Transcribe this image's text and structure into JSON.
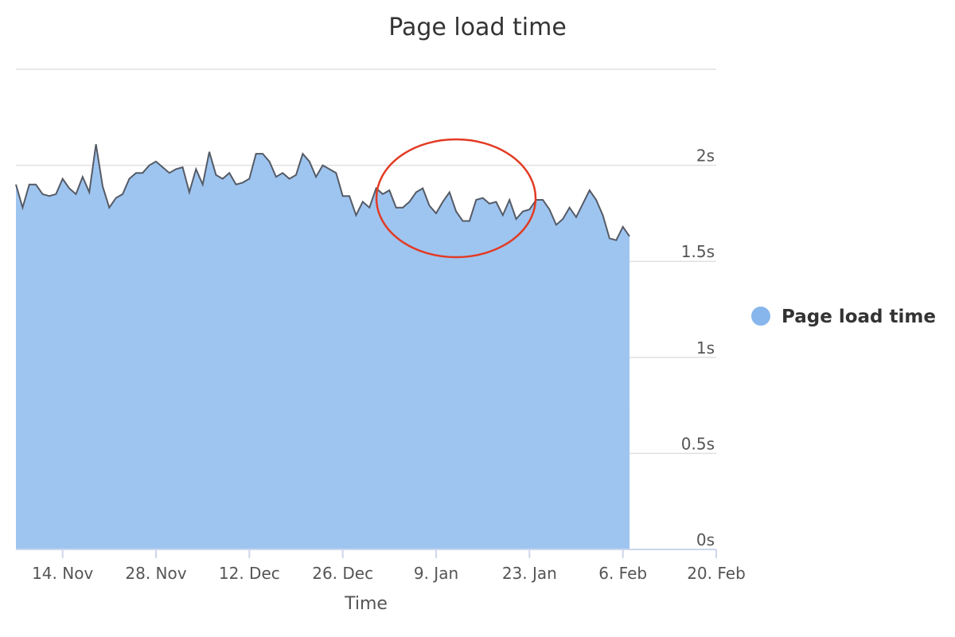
{
  "chart_data": {
    "type": "area",
    "title": "Page load time",
    "xlabel": "Time",
    "x": [
      "11-07",
      "11-08",
      "11-09",
      "11-10",
      "11-11",
      "11-12",
      "11-13",
      "11-14",
      "11-15",
      "11-16",
      "11-17",
      "11-18",
      "11-19",
      "11-20",
      "11-21",
      "11-22",
      "11-23",
      "11-24",
      "11-25",
      "11-26",
      "11-27",
      "11-28",
      "11-29",
      "11-30",
      "12-01",
      "12-02",
      "12-03",
      "12-04",
      "12-05",
      "12-06",
      "12-07",
      "12-08",
      "12-09",
      "12-10",
      "12-11",
      "12-12",
      "12-13",
      "12-14",
      "12-15",
      "12-16",
      "12-17",
      "12-18",
      "12-19",
      "12-20",
      "12-21",
      "12-22",
      "12-23",
      "12-24",
      "12-25",
      "12-26",
      "12-27",
      "12-28",
      "12-29",
      "12-30",
      "12-31",
      "01-01",
      "01-02",
      "01-03",
      "01-04",
      "01-05",
      "01-06",
      "01-07",
      "01-08",
      "01-09",
      "01-10",
      "01-11",
      "01-12",
      "01-13",
      "01-14",
      "01-15",
      "01-16",
      "01-17",
      "01-18",
      "01-19",
      "01-20",
      "01-21",
      "01-22",
      "01-23",
      "01-24",
      "01-25",
      "01-26",
      "01-27",
      "01-28",
      "01-29",
      "01-30",
      "01-31",
      "02-01",
      "02-02",
      "02-03",
      "02-04",
      "02-05",
      "02-06",
      "02-07"
    ],
    "series": [
      {
        "name": "Page load time",
        "color": "#9ec5f0",
        "line_color": "#555b66",
        "legend_color": "#86b6ec",
        "values": [
          1.9,
          1.78,
          1.9,
          1.9,
          1.85,
          1.84,
          1.85,
          1.93,
          1.88,
          1.85,
          1.94,
          1.86,
          2.11,
          1.89,
          1.78,
          1.83,
          1.85,
          1.93,
          1.96,
          1.96,
          2.0,
          2.02,
          1.99,
          1.96,
          1.98,
          1.99,
          1.86,
          1.98,
          1.9,
          2.07,
          1.95,
          1.93,
          1.96,
          1.9,
          1.91,
          1.93,
          2.06,
          2.06,
          2.02,
          1.94,
          1.96,
          1.93,
          1.95,
          2.06,
          2.02,
          1.94,
          2.0,
          1.98,
          1.96,
          1.84,
          1.84,
          1.74,
          1.81,
          1.78,
          1.88,
          1.85,
          1.87,
          1.78,
          1.78,
          1.81,
          1.86,
          1.88,
          1.79,
          1.75,
          1.81,
          1.86,
          1.76,
          1.71,
          1.71,
          1.82,
          1.83,
          1.8,
          1.81,
          1.74,
          1.82,
          1.72,
          1.76,
          1.77,
          1.82,
          1.82,
          1.77,
          1.69,
          1.72,
          1.78,
          1.73,
          1.8,
          1.87,
          1.82,
          1.74,
          1.62,
          1.61,
          1.68,
          1.63
        ]
      }
    ],
    "xlim": [
      "11-07",
      "02-20"
    ],
    "xticks": [
      {
        "value": "11-14",
        "label": "14. Nov"
      },
      {
        "value": "11-28",
        "label": "28. Nov"
      },
      {
        "value": "12-12",
        "label": "12. Dec"
      },
      {
        "value": "12-26",
        "label": "26. Dec"
      },
      {
        "value": "01-09",
        "label": "9. Jan"
      },
      {
        "value": "01-23",
        "label": "23. Jan"
      },
      {
        "value": "02-06",
        "label": "6. Feb"
      },
      {
        "value": "02-20",
        "label": "20. Feb"
      }
    ],
    "ylim": [
      0,
      2.5
    ],
    "yticks": [
      {
        "value": 0,
        "label": "0s"
      },
      {
        "value": 0.5,
        "label": "0.5s"
      },
      {
        "value": 1,
        "label": "1s"
      },
      {
        "value": 1.5,
        "label": "1.5s"
      },
      {
        "value": 2,
        "label": "2s"
      }
    ],
    "grid": true,
    "legend": "right"
  }
}
